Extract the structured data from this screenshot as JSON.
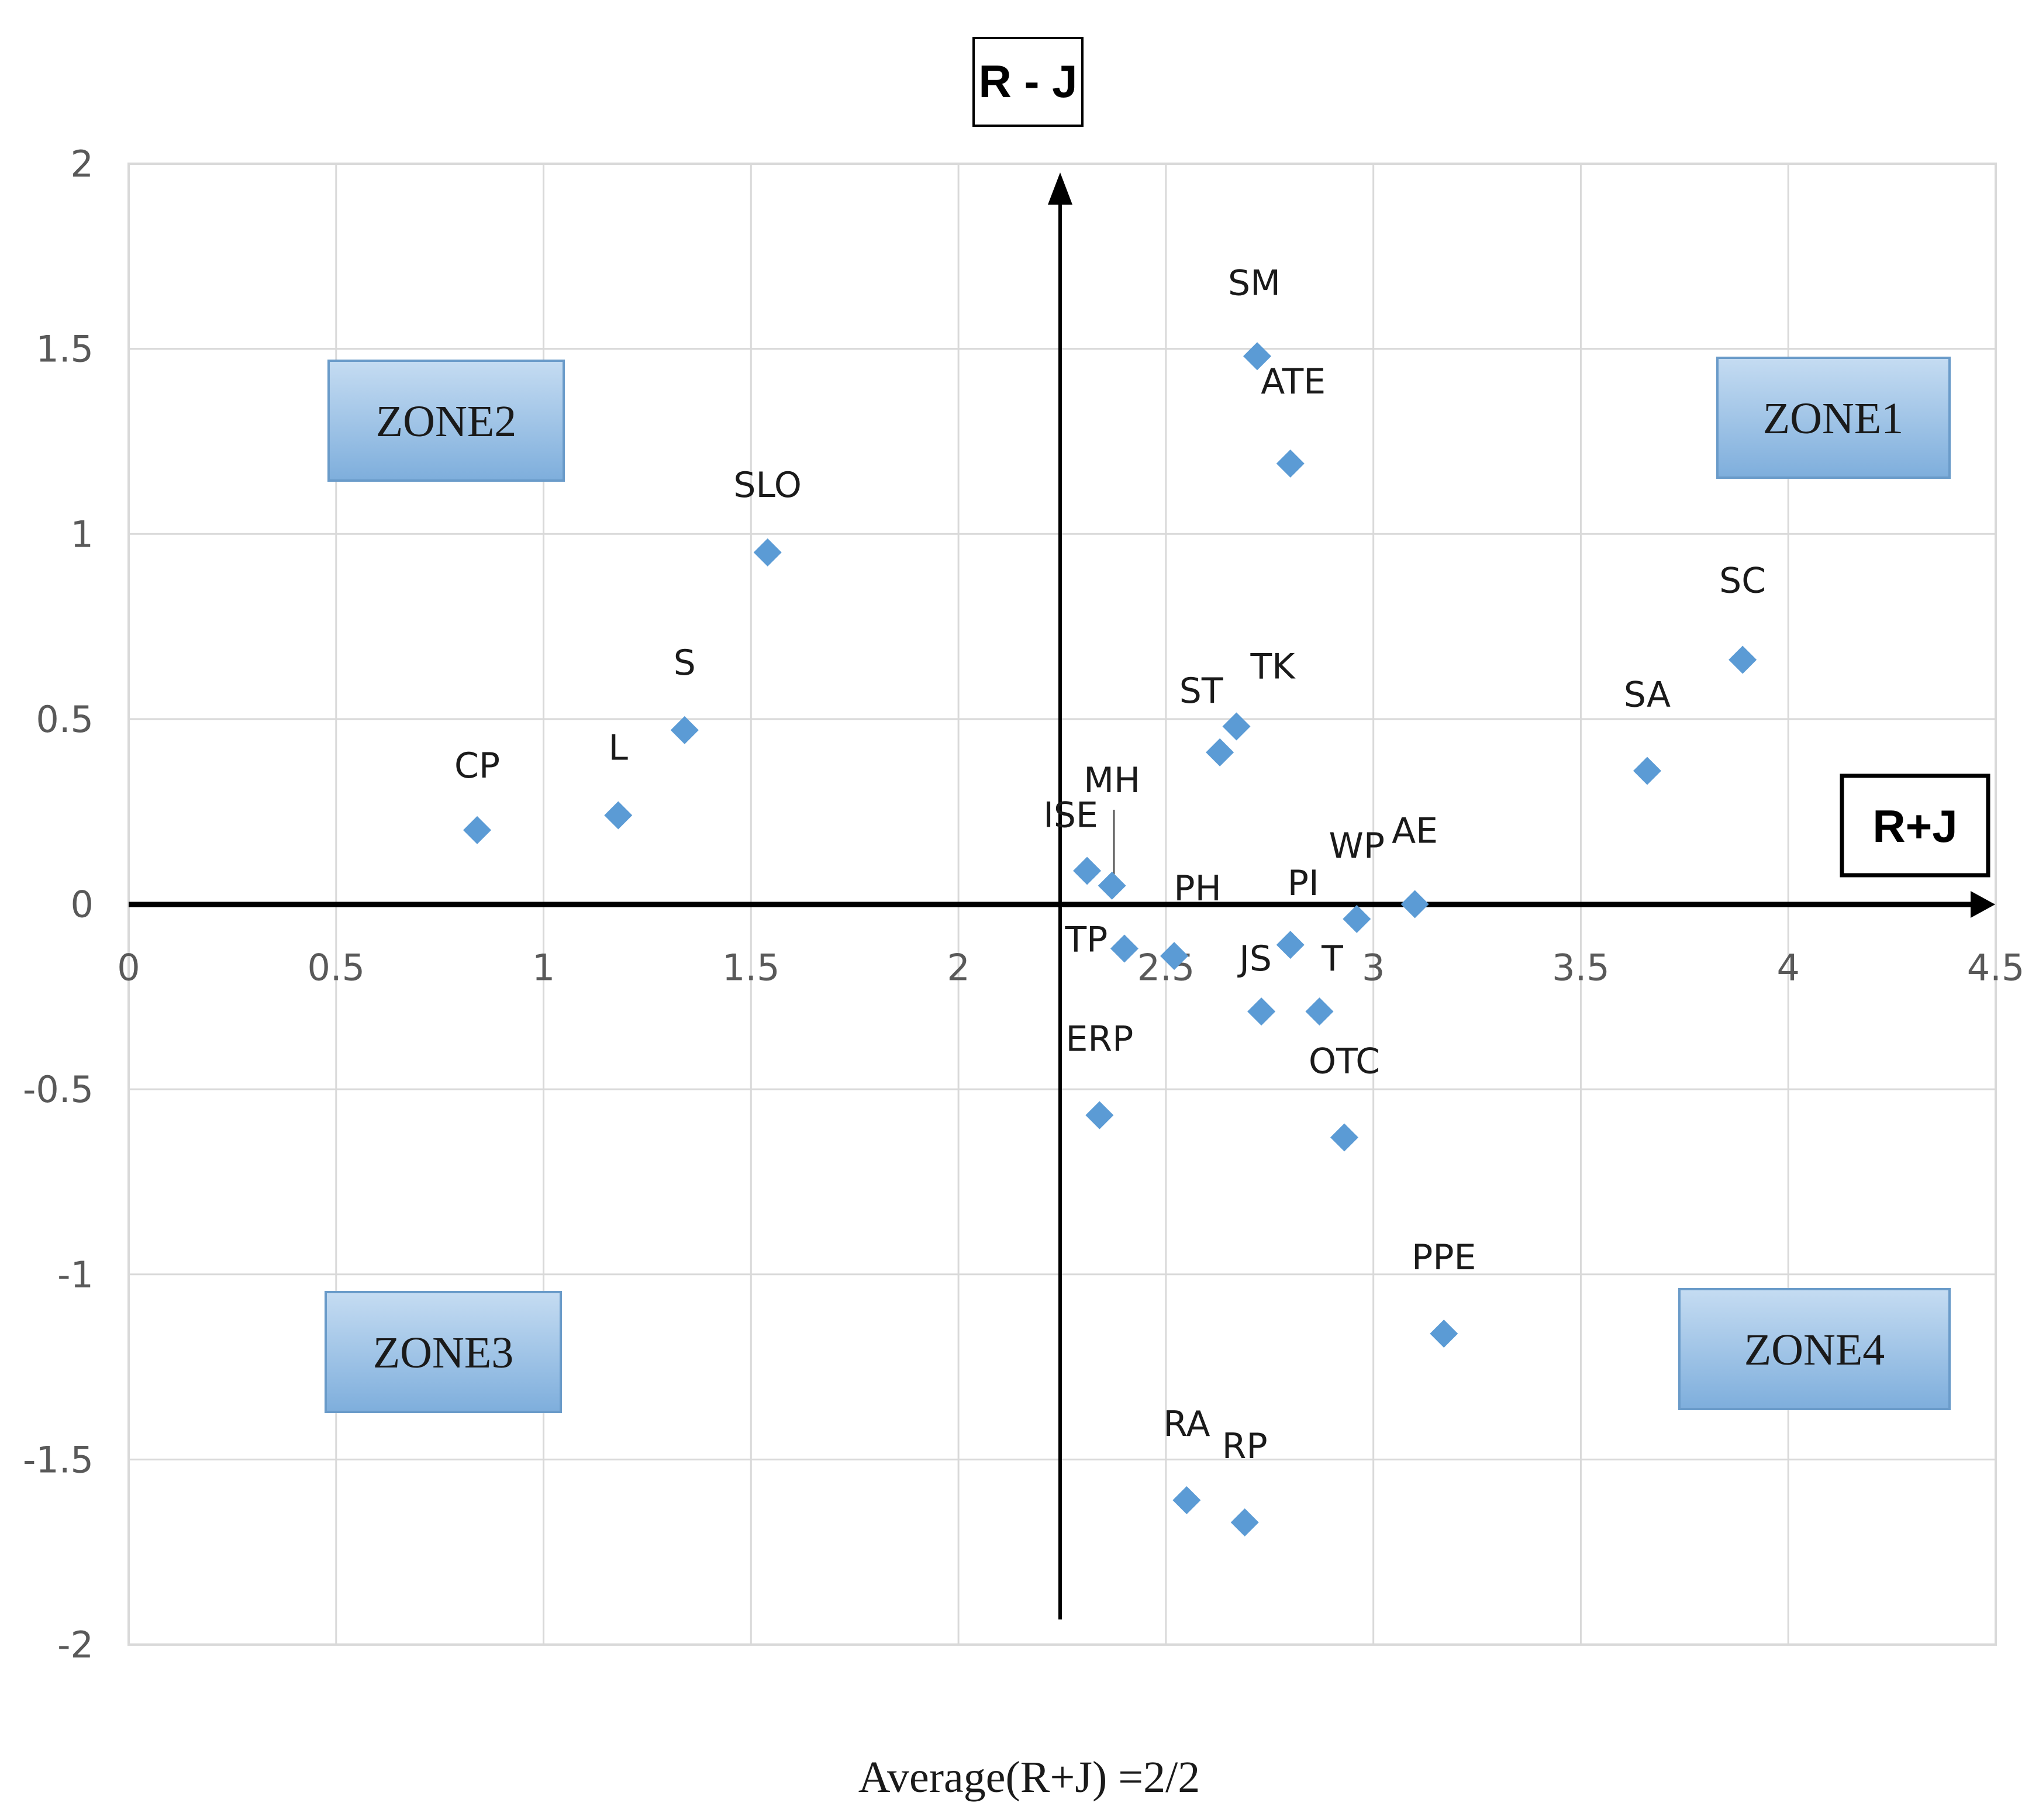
{
  "chart_data": {
    "type": "scatter",
    "title": "",
    "xlabel": "R+J",
    "ylabel": "R - J",
    "footer": "Average(R+J) =2/2",
    "xlim": [
      0,
      4.5
    ],
    "ylim": [
      -2,
      2
    ],
    "x_ticks": [
      "0",
      "0.5",
      "1",
      "1.5",
      "2",
      "2.5",
      "3",
      "3.5",
      "4",
      "4.5"
    ],
    "y_ticks": [
      "2",
      "1.5",
      "1",
      "0.5",
      "0",
      "-0.5",
      "-1",
      "-1.5",
      "-2"
    ],
    "grid": true,
    "marker": "diamond",
    "marker_color": "#5b9bd5",
    "vertical_divider_x": 2.25,
    "zones": [
      "ZONE1",
      "ZONE2",
      "ZONE3",
      "ZONE4"
    ],
    "points": [
      {
        "label": "CP",
        "x": 0.84,
        "y": 0.2
      },
      {
        "label": "L",
        "x": 1.18,
        "y": 0.24
      },
      {
        "label": "S",
        "x": 1.34,
        "y": 0.47
      },
      {
        "label": "SLO",
        "x": 1.54,
        "y": 0.95
      },
      {
        "label": "ISE",
        "x": 2.31,
        "y": 0.09
      },
      {
        "label": "MH",
        "x": 2.37,
        "y": 0.05
      },
      {
        "label": "TP",
        "x": 2.4,
        "y": -0.12
      },
      {
        "label": "PH",
        "x": 2.52,
        "y": -0.14
      },
      {
        "label": "ERP",
        "x": 2.34,
        "y": -0.57
      },
      {
        "label": "ST",
        "x": 2.63,
        "y": 0.41
      },
      {
        "label": "TK",
        "x": 2.67,
        "y": 0.48
      },
      {
        "label": "SM",
        "x": 2.72,
        "y": 1.48
      },
      {
        "label": "ATE",
        "x": 2.8,
        "y": 1.19
      },
      {
        "label": "JS",
        "x": 2.73,
        "y": -0.29
      },
      {
        "label": "PI",
        "x": 2.8,
        "y": -0.11
      },
      {
        "label": "T",
        "x": 2.87,
        "y": -0.29
      },
      {
        "label": "WP",
        "x": 2.96,
        "y": -0.04
      },
      {
        "label": "AE",
        "x": 3.1,
        "y": 0.0
      },
      {
        "label": "OTC",
        "x": 2.93,
        "y": -0.63
      },
      {
        "label": "PPE",
        "x": 3.17,
        "y": -1.16
      },
      {
        "label": "RA",
        "x": 2.55,
        "y": -1.61
      },
      {
        "label": "RP",
        "x": 2.69,
        "y": -1.67
      },
      {
        "label": "SA",
        "x": 3.66,
        "y": 0.36
      },
      {
        "label": "SC",
        "x": 3.89,
        "y": 0.66
      }
    ]
  }
}
